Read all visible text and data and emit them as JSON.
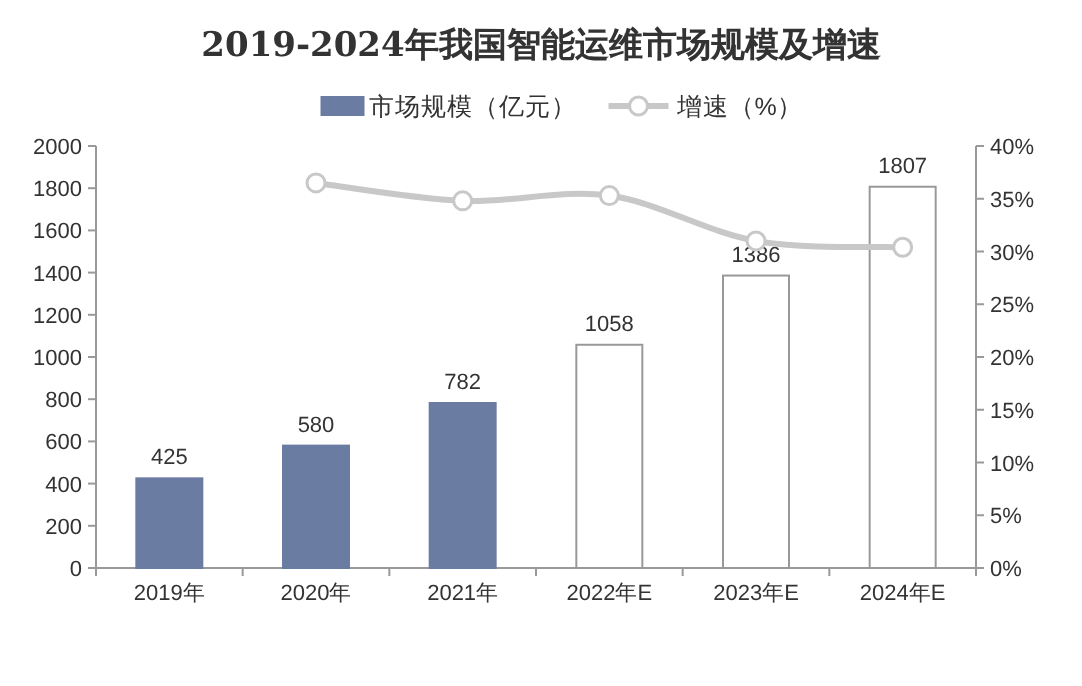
{
  "chart_data": {
    "type": "bar",
    "title": "2019-2024年我国智能运维市场规模及增速",
    "categories": [
      "2019年",
      "2020年",
      "2021年",
      "2022年E",
      "2023年E",
      "2024年E"
    ],
    "series": [
      {
        "name": "市场规模（亿元）",
        "colors": [
          "#6b7ca3",
          "#6b7ca3",
          "#6b7ca3",
          "#ffffff",
          "#ffffff",
          "#ffffff"
        ],
        "values": [
          425,
          580,
          782,
          1058,
          1386,
          1807
        ],
        "data_labels": true
      },
      {
        "name": "增速（%）",
        "type": "line",
        "axis": "y2",
        "color": "#c8c8c8",
        "marker": "circle",
        "values": [
          null,
          36.5,
          34.8,
          35.3,
          31.0,
          30.4
        ]
      }
    ],
    "ylim": [
      0,
      2000
    ],
    "yticks": [
      0,
      200,
      400,
      600,
      800,
      1000,
      1200,
      1400,
      1600,
      1800,
      2000
    ],
    "y2lim": [
      0,
      40
    ],
    "y2ticks": [
      {
        "value": 0,
        "label": "0%"
      },
      {
        "value": 5,
        "label": "5%"
      },
      {
        "value": 10,
        "label": "10%"
      },
      {
        "value": 15,
        "label": "15%"
      },
      {
        "value": 20,
        "label": "20%"
      },
      {
        "value": 25,
        "label": "25%"
      },
      {
        "value": 30,
        "label": "30%"
      },
      {
        "value": 35,
        "label": "35%"
      },
      {
        "value": 40,
        "label": "40%"
      }
    ],
    "legend": "top",
    "grid": false
  }
}
